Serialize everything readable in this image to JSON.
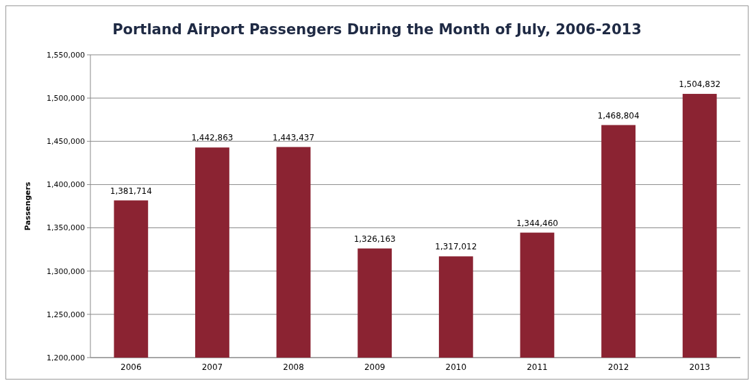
{
  "chart_data": {
    "type": "bar",
    "title": "Portland Airport Passengers During the Month of July, 2006-2013",
    "ylabel": "Passengers",
    "categories": [
      "2006",
      "2007",
      "2008",
      "2009",
      "2010",
      "2011",
      "2012",
      "2013"
    ],
    "values": [
      1381714,
      1442863,
      1443437,
      1326163,
      1317012,
      1344460,
      1468804,
      1504832
    ],
    "value_labels": [
      "1,381,714",
      "1,442,863",
      "1,443,437",
      "1,326,163",
      "1,317,012",
      "1,344,460",
      "1,468,804",
      "1,504,832"
    ],
    "color": "#8b2332",
    "ylim": [
      1200000,
      1550000
    ],
    "yticks": [
      {
        "value": 1200000,
        "label": "1,200,000"
      },
      {
        "value": 1250000,
        "label": "1,250,000"
      },
      {
        "value": 1300000,
        "label": "1,300,000"
      },
      {
        "value": 1350000,
        "label": "1,350,000"
      },
      {
        "value": 1400000,
        "label": "1,400,000"
      },
      {
        "value": 1450000,
        "label": "1,450,000"
      },
      {
        "value": 1500000,
        "label": "1,500,000"
      },
      {
        "value": 1550000,
        "label": "1,550,000"
      }
    ],
    "grid": "y"
  }
}
